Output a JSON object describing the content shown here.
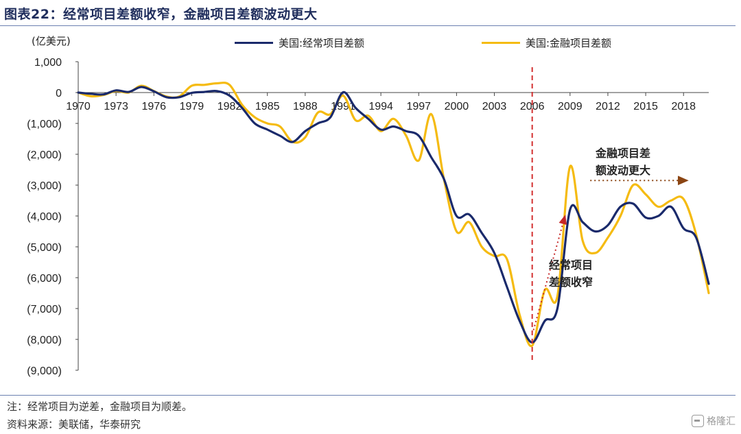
{
  "header": {
    "title": "图表22：经常项目差额收窄，金融项目差额波动更大"
  },
  "footer": {
    "note": "注：经常项目为逆差，金融项目为顺差。",
    "source": "资料来源：美联储，华泰研究",
    "watermark": "格隆汇"
  },
  "chart_data": {
    "type": "line",
    "unit_label": "(亿美元)",
    "xlim": [
      1970,
      2020
    ],
    "ylim": [
      -9000,
      1000
    ],
    "x_ticks": [
      "1970",
      "1973",
      "1976",
      "1979",
      "1982",
      "1985",
      "1988",
      "1991",
      "1994",
      "1997",
      "2000",
      "2003",
      "2006",
      "2009",
      "2012",
      "2015",
      "2018"
    ],
    "y_ticks": [
      "1,000",
      "0",
      "(1,000)",
      "(2,000)",
      "(3,000)",
      "(4,000)",
      "(5,000)",
      "(6,000)",
      "(7,000)",
      "(8,000)",
      "(9,000)"
    ],
    "legend_position": "top-right",
    "x": [
      1970,
      1971,
      1972,
      1973,
      1974,
      1975,
      1976,
      1977,
      1978,
      1979,
      1980,
      1981,
      1982,
      1983,
      1984,
      1985,
      1986,
      1987,
      1988,
      1989,
      1990,
      1991,
      1992,
      1993,
      1994,
      1995,
      1996,
      1997,
      1998,
      1999,
      2000,
      2001,
      2002,
      2003,
      2004,
      2005,
      2006,
      2007,
      2008,
      2009,
      2010,
      2011,
      2012,
      2013,
      2014,
      2015,
      2016,
      2017,
      2018,
      2019,
      2020
    ],
    "series": [
      {
        "name": "美国:经常项目差额",
        "color": "#1a2a6b",
        "values": [
          0,
          -40,
          -60,
          70,
          20,
          180,
          40,
          -150,
          -150,
          -10,
          20,
          50,
          -100,
          -500,
          -1000,
          -1200,
          -1400,
          -1600,
          -1250,
          -1000,
          -800,
          10,
          -500,
          -850,
          -1200,
          -1100,
          -1250,
          -1400,
          -2100,
          -2800,
          -4000,
          -3950,
          -4550,
          -5200,
          -6300,
          -7400,
          -8100,
          -7400,
          -7000,
          -3800,
          -4200,
          -4500,
          -4300,
          -3700,
          -3600,
          -4050,
          -4000,
          -3700,
          -4400,
          -4700,
          -6200
        ]
      },
      {
        "name": "美国:金融项目差额",
        "color": "#f5bb12",
        "values": [
          0,
          -120,
          -80,
          50,
          0,
          220,
          50,
          -130,
          -130,
          220,
          250,
          300,
          250,
          -400,
          -800,
          -1000,
          -1100,
          -1600,
          -1450,
          -650,
          -700,
          -100,
          -900,
          -750,
          -1250,
          -850,
          -1400,
          -2200,
          -700,
          -2800,
          -4500,
          -4200,
          -5000,
          -5300,
          -5400,
          -7200,
          -8200,
          -6400,
          -6600,
          -2400,
          -4800,
          -5200,
          -4700,
          -4000,
          -3000,
          -3300,
          -3700,
          -3500,
          -3450,
          -4600,
          -6500
        ]
      }
    ],
    "annotations": [
      {
        "text_lines": [
          "金融项目差",
          "额波动更大"
        ],
        "color": "#222"
      },
      {
        "text_lines": [
          "经常项目",
          "差额收窄"
        ],
        "color": "#222"
      }
    ],
    "reference_line": {
      "x": 2006,
      "color": "#d32f2f",
      "style": "dashed"
    },
    "arrows": [
      {
        "from": [
          2006.1,
          -7700
        ],
        "to": [
          2008.6,
          -4000
        ],
        "color": "#c62828",
        "style": "dotted"
      },
      {
        "from": [
          2010.6,
          -2850
        ],
        "to": [
          2018.3,
          -2850
        ],
        "color": "#8b4513",
        "style": "dotted"
      }
    ]
  }
}
